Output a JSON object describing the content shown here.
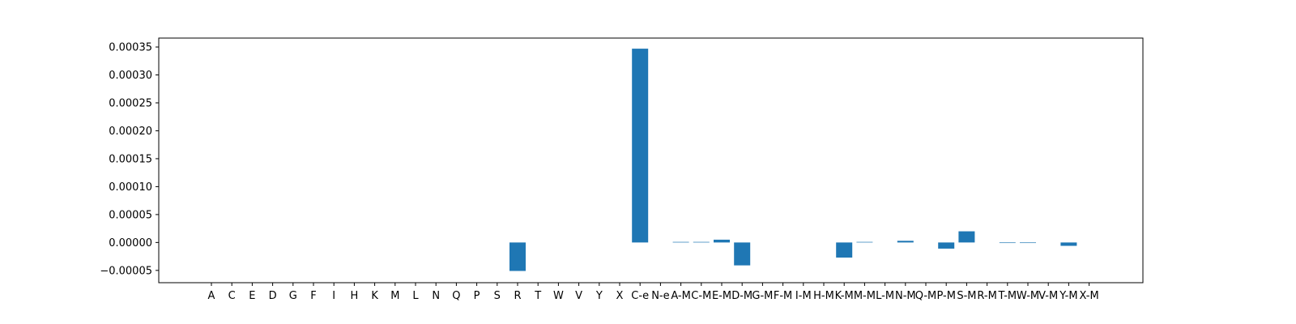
{
  "chart_data": {
    "type": "bar",
    "title": "",
    "xlabel": "",
    "ylabel": "",
    "ylim": [
      -7.2e-05,
      0.000366
    ],
    "yticks": [
      -5e-05,
      0.0,
      5e-05,
      0.0001,
      0.00015,
      0.0002,
      0.00025,
      0.0003,
      0.00035
    ],
    "ytick_labels": [
      "−0.00005",
      "0.00000",
      "0.00005",
      "0.00010",
      "0.00015",
      "0.00020",
      "0.00025",
      "0.00030",
      "0.00035"
    ],
    "categories": [
      "A",
      "C",
      "E",
      "D",
      "G",
      "F",
      "I",
      "H",
      "K",
      "M",
      "L",
      "N",
      "Q",
      "P",
      "S",
      "R",
      "T",
      "W",
      "V",
      "Y",
      "X",
      "C-e",
      "N-e",
      "A-M",
      "C-M",
      "E-M",
      "D-M",
      "G-M",
      "F-M",
      "I-M",
      "H-M",
      "K-M",
      "M-M",
      "L-M",
      "N-M",
      "Q-M",
      "P-M",
      "S-M",
      "R-M",
      "T-M",
      "W-M",
      "V-M",
      "Y-M",
      "X-M"
    ],
    "values": [
      0,
      0,
      0,
      0,
      0,
      0,
      0,
      0,
      0,
      0,
      0,
      0,
      0,
      0,
      0,
      -5.1e-05,
      0,
      0,
      0,
      0,
      0,
      0.000347,
      0,
      1e-06,
      1e-06,
      5e-06,
      -4.1e-05,
      0,
      0,
      0,
      0,
      -2.7e-05,
      1e-06,
      0,
      3e-06,
      0,
      -1.1e-05,
      2e-05,
      0,
      -1e-06,
      -1e-06,
      0,
      -6e-06,
      0
    ],
    "bar_color": "#1f77b4",
    "grid": false
  }
}
